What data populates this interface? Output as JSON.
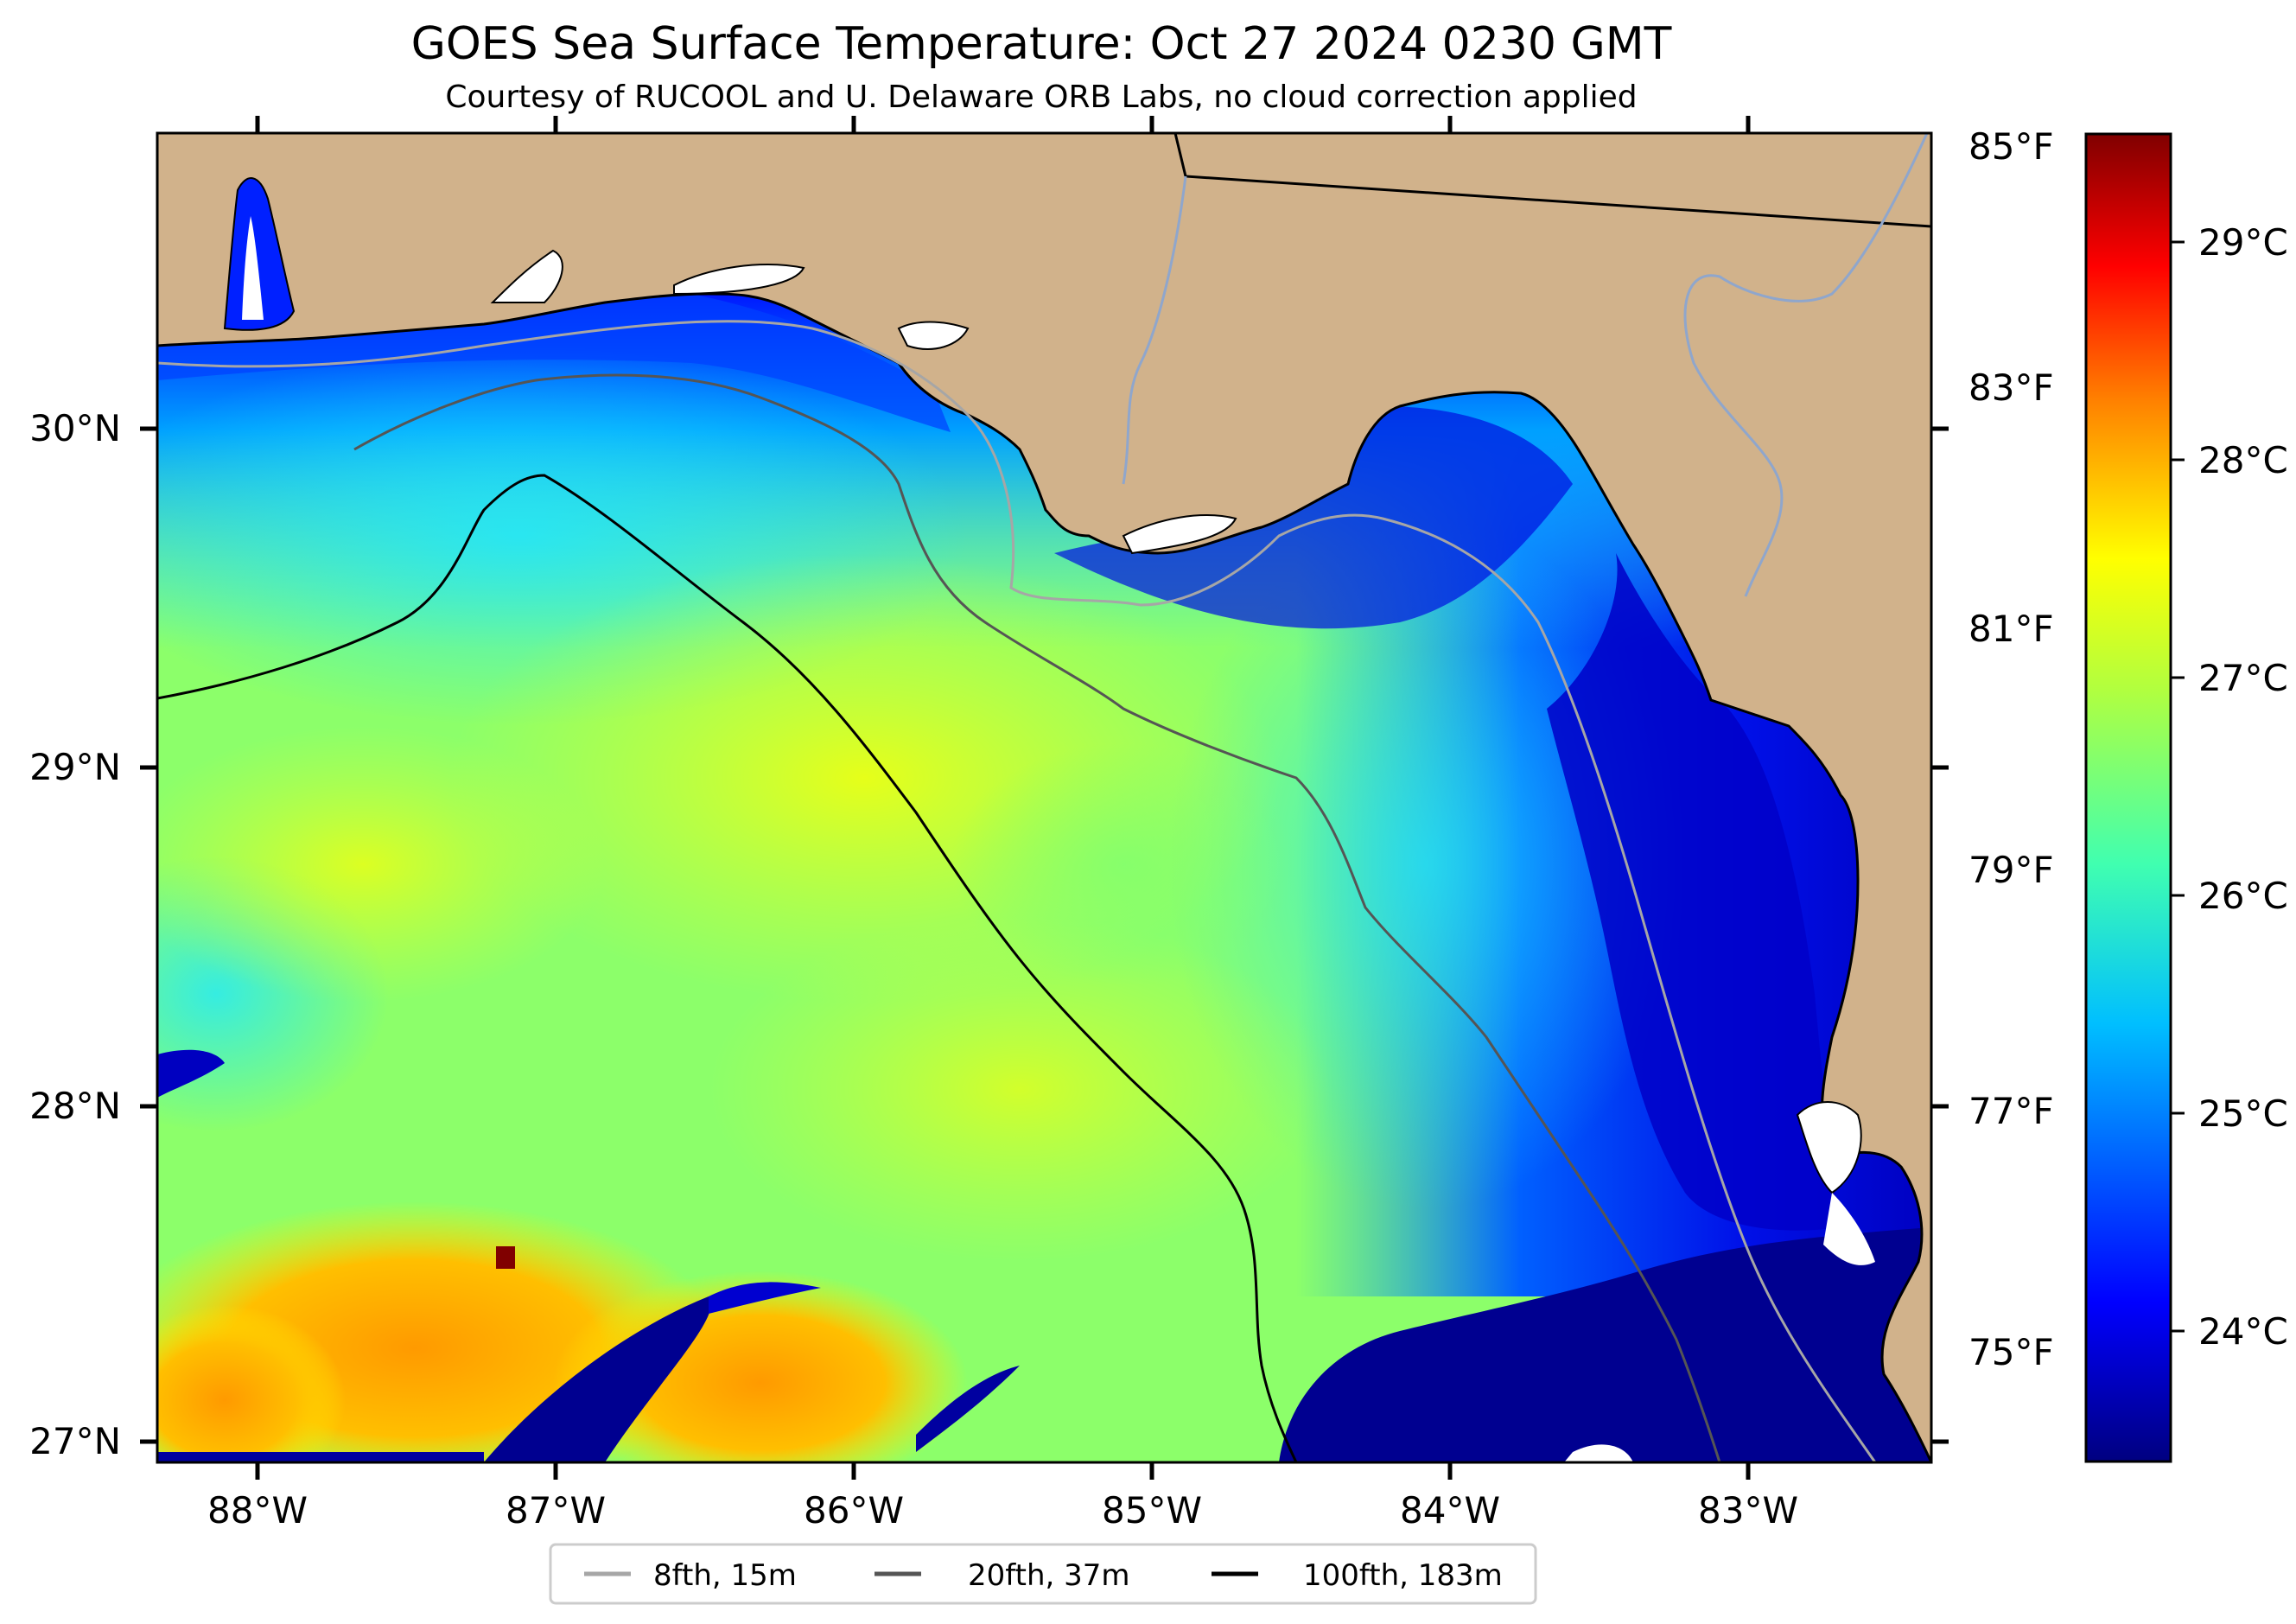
{
  "title": "GOES Sea Surface Temperature: Oct 27 2024 0230 GMT",
  "subtitle": "Courtesy of RUCOOL and U. Delaware ORB Labs, no cloud correction applied",
  "lat_ticks": [
    "30°N",
    "29°N",
    "28°N",
    "27°N"
  ],
  "lon_ticks": [
    "88°W",
    "87°W",
    "86°W",
    "85°W",
    "84°W",
    "83°W"
  ],
  "fahrenheit_ticks": [
    "85°F",
    "83°F",
    "81°F",
    "79°F",
    "77°F",
    "75°F"
  ],
  "celsius_ticks": [
    "29°C",
    "28°C",
    "27°C",
    "26°C",
    "25°C",
    "24°C"
  ],
  "legend": [
    {
      "label": "8fth, 15m",
      "color": "#a6a6a6"
    },
    {
      "label": "20fth, 37m",
      "color": "#555555"
    },
    {
      "label": "100fth, 183m",
      "color": "#000000"
    }
  ],
  "colors": {
    "land": "#d1b28b",
    "colormap": [
      "#000080",
      "#0000ff",
      "#00bfff",
      "#40ffb0",
      "#b0ff40",
      "#ffff00",
      "#ff8000",
      "#ff0000",
      "#800000"
    ]
  }
}
